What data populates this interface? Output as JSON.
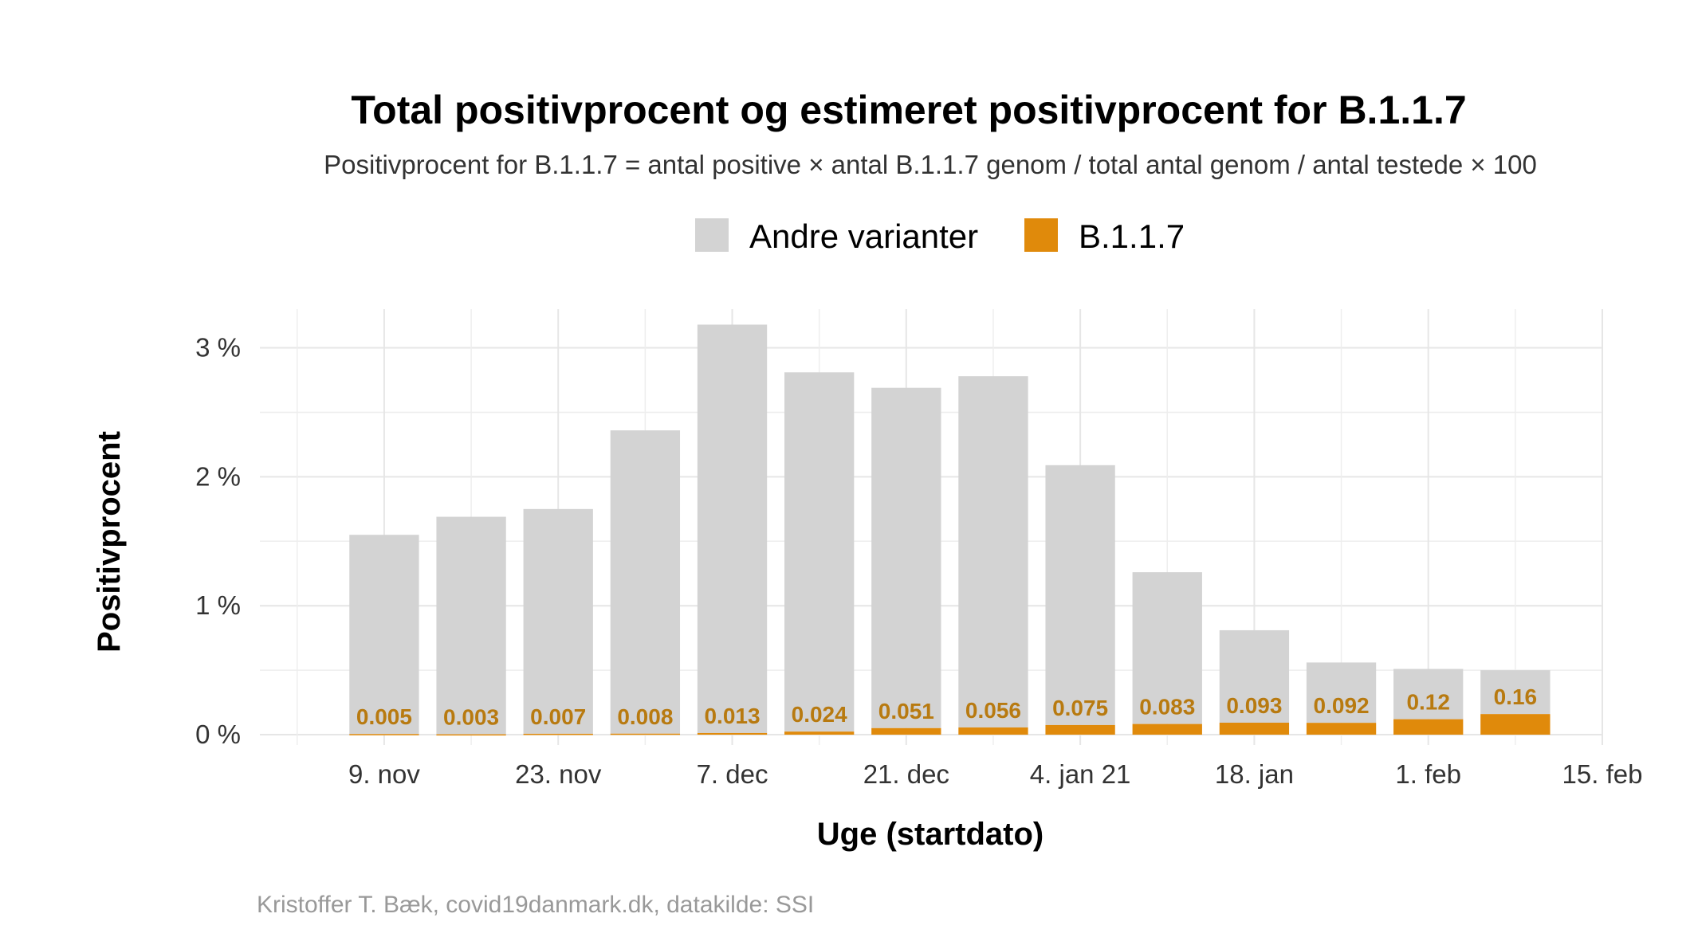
{
  "chart_data": {
    "type": "bar",
    "stacked": true,
    "title": "Total positivprocent og estimeret positivprocent for B.1.1.7",
    "subtitle": "Positivprocent for B.1.1.7 = antal positive × antal B.1.1.7 genom / total antal genom / antal testede × 100",
    "caption": "Kristoffer T. Bæk, covid19danmark.dk, datakilde: SSI",
    "xlabel": "Uge (startdato)",
    "ylabel": "Positivprocent",
    "legend_position": "top",
    "grid": true,
    "ylim": [
      -0.08,
      3.3
    ],
    "yticks": [
      0,
      1,
      2,
      3
    ],
    "ytick_labels": [
      "0 %",
      "1 %",
      "2 %",
      "3 %"
    ],
    "xlim": [
      "2020-10-30",
      "2021-02-15"
    ],
    "xticks": [
      "2020-11-09",
      "2020-11-23",
      "2020-12-07",
      "2020-12-21",
      "2021-01-04",
      "2021-01-18",
      "2021-02-01",
      "2021-02-15"
    ],
    "xtick_labels": [
      "9. nov",
      "23. nov",
      "7. dec",
      "21. dec",
      "4. jan 21",
      "18. jan",
      "1. feb",
      "15. feb"
    ],
    "x": [
      "2020-11-09",
      "2020-11-16",
      "2020-11-23",
      "2020-11-30",
      "2020-12-07",
      "2020-12-14",
      "2020-12-21",
      "2020-12-28",
      "2021-01-04",
      "2021-01-11",
      "2021-01-18",
      "2021-01-25",
      "2021-02-01",
      "2021-02-08"
    ],
    "series": [
      {
        "name": "B.1.1.7",
        "color": "#E08A0B",
        "values": [
          0.005,
          0.003,
          0.007,
          0.008,
          0.013,
          0.024,
          0.051,
          0.056,
          0.075,
          0.083,
          0.093,
          0.092,
          0.12,
          0.16
        ],
        "labels": [
          "0.005",
          "0.003",
          "0.007",
          "0.008",
          "0.013",
          "0.024",
          "0.051",
          "0.056",
          "0.075",
          "0.083",
          "0.093",
          "0.092",
          "0.12",
          "0.16"
        ]
      },
      {
        "name": "Andre varianter",
        "color": "#D3D3D3",
        "values": [
          1.545,
          1.687,
          1.743,
          2.352,
          3.167,
          2.786,
          2.639,
          2.724,
          2.015,
          1.177,
          0.717,
          0.468,
          0.39,
          0.34
        ]
      }
    ],
    "totals": [
      1.55,
      1.69,
      1.75,
      2.36,
      3.18,
      2.81,
      2.69,
      2.78,
      2.09,
      1.26,
      0.81,
      0.56,
      0.51,
      0.5
    ],
    "legend_order": [
      "Andre varianter",
      "B.1.1.7"
    ],
    "label_color": "#B87A10"
  }
}
